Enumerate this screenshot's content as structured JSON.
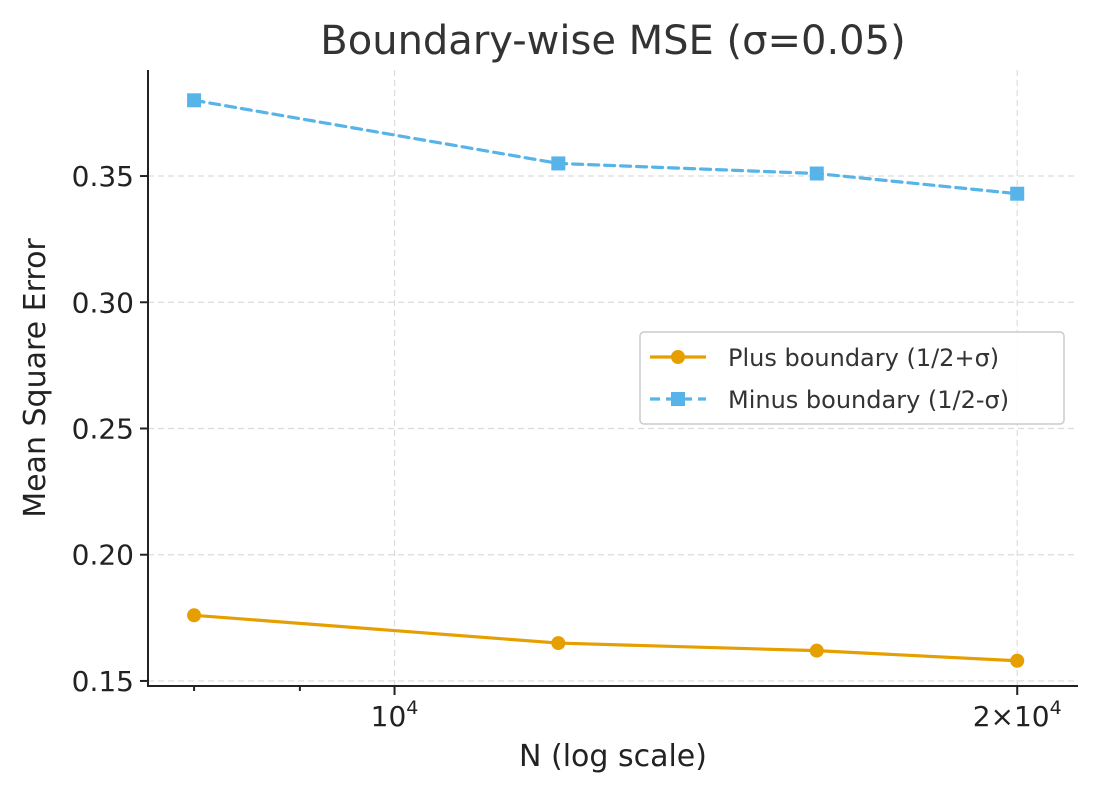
{
  "chart_data": {
    "type": "line",
    "title": "Boundary-wise MSE (σ=0.05)",
    "xlabel": "N (log scale)",
    "ylabel": "Mean Square Error",
    "xscale": "log",
    "xlim": [
      7600,
      21400
    ],
    "ylim": [
      0.148,
      0.392
    ],
    "x": [
      8000,
      12000,
      16000,
      20000
    ],
    "x_ticks": [
      {
        "value": 10000,
        "base": "10",
        "exp": "4",
        "prefix": ""
      },
      {
        "value": 20000,
        "base": "10",
        "exp": "4",
        "prefix": "2×"
      }
    ],
    "x_minor_ticks": [
      8000,
      9000,
      30000
    ],
    "y_ticks": [
      {
        "value": 0.15,
        "label": "0.15"
      },
      {
        "value": 0.2,
        "label": "0.20"
      },
      {
        "value": 0.25,
        "label": "0.25"
      },
      {
        "value": 0.3,
        "label": "0.30"
      },
      {
        "value": 0.35,
        "label": "0.35"
      }
    ],
    "grid": true,
    "legend_position": "center-right",
    "series": [
      {
        "name": "Plus boundary (1/2+σ)",
        "values": [
          0.176,
          0.165,
          0.162,
          0.158
        ],
        "color": "#E69F00",
        "marker": "circle",
        "dashed": false
      },
      {
        "name": "Minus boundary (1/2-σ)",
        "values": [
          0.38,
          0.355,
          0.351,
          0.343
        ],
        "color": "#56B4E9",
        "marker": "square",
        "dashed": true
      }
    ]
  }
}
